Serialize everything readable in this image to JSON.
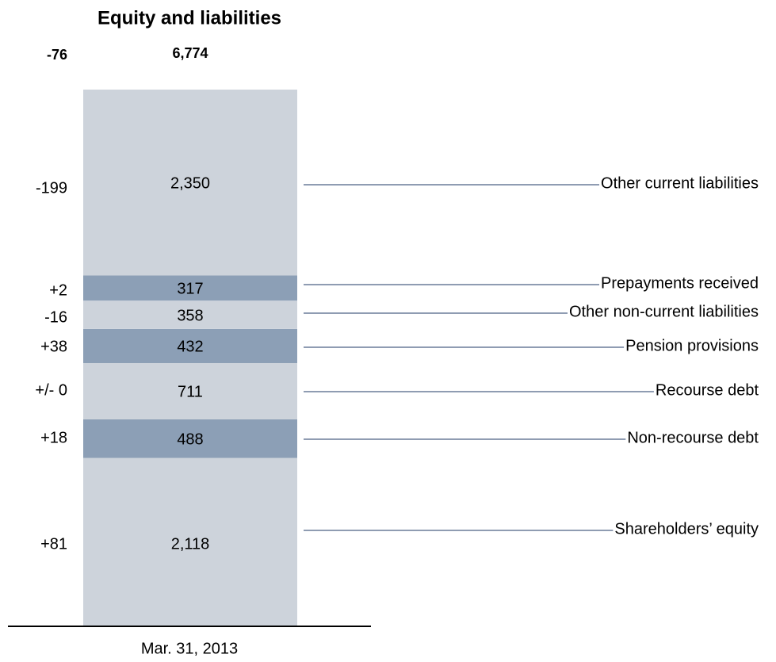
{
  "chart_data": {
    "type": "stacked_bar",
    "title": "Equity and liabilities",
    "period": "Mar. 31, 2013",
    "total": 6774,
    "total_label": "6,774",
    "total_change": "-76",
    "segments": [
      "Shareholders’ equity",
      "Non-recourse debt",
      "Recourse debt",
      "Pension provisions",
      "Other non-current liabilities",
      "Prepayments received",
      "Other current liabilities"
    ],
    "values": [
      2118,
      488,
      711,
      432,
      358,
      317,
      2350
    ],
    "value_labels": [
      "2,118",
      "488",
      "711",
      "432",
      "358",
      "317",
      "2,350"
    ],
    "changes": [
      "+81",
      "+18",
      "+/- 0",
      "+38",
      "-16",
      "+2",
      "-199"
    ],
    "colors": [
      "#cdd3db",
      "#8c9fb6",
      "#cdd3db",
      "#8c9fb6",
      "#cdd3db",
      "#8c9fb6",
      "#cdd3db"
    ],
    "leader_color": "#1f3864"
  }
}
